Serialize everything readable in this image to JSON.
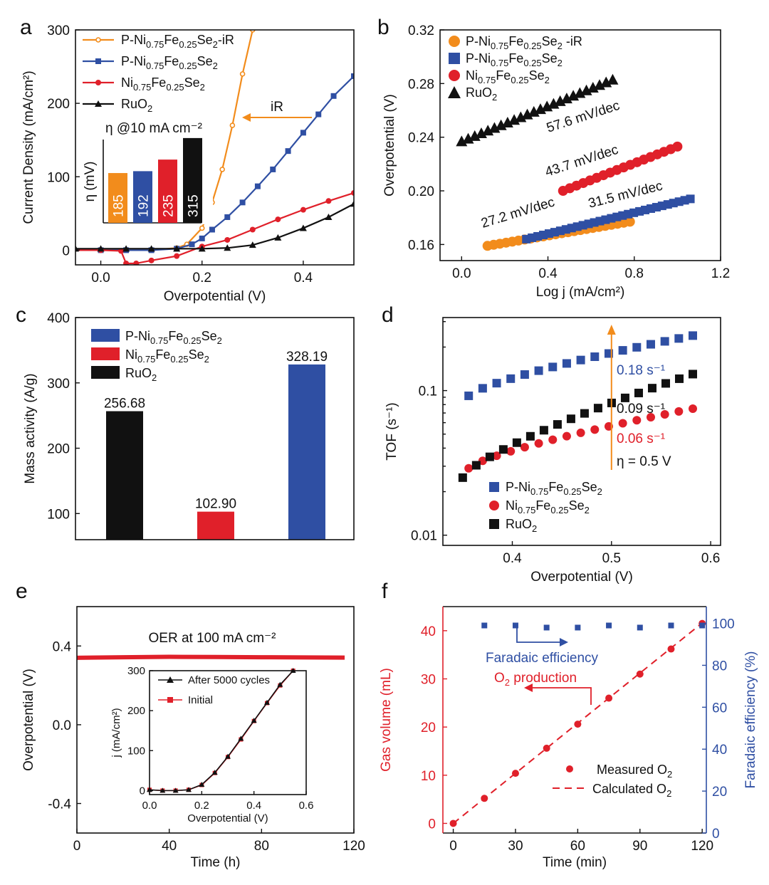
{
  "chart_data": [
    {
      "panel": "a",
      "type": "line",
      "xlabel": "Overpotential (V)",
      "ylabel": "Current Density (mA/cm²)",
      "xlim": [
        -0.05,
        0.5
      ],
      "ylim": [
        -20,
        300
      ],
      "xticks": [
        0.0,
        0.2,
        0.4
      ],
      "yticks": [
        0,
        100,
        200,
        300
      ],
      "annotation": "iR",
      "series": [
        {
          "name": "P-Ni0.75Fe0.25Se2-iR",
          "label_parts": [
            "P-Ni",
            "0.75",
            "Fe",
            "0.25",
            "Se",
            "2",
            "-iR"
          ],
          "color": "#f28c1c",
          "marker": "circle-open",
          "x": [
            -0.05,
            0.0,
            0.05,
            0.1,
            0.15,
            0.17,
            0.2,
            0.22,
            0.24,
            0.26,
            0.28,
            0.3
          ],
          "y": [
            0,
            0,
            0,
            0,
            3,
            8,
            30,
            65,
            110,
            170,
            240,
            300
          ]
        },
        {
          "name": "P-Ni0.75Fe0.25Se2",
          "label_parts": [
            "P-Ni",
            "0.75",
            "Fe",
            "0.25",
            "Se",
            "2",
            ""
          ],
          "color": "#2f4fa3",
          "marker": "square",
          "x": [
            -0.05,
            0.0,
            0.05,
            0.1,
            0.15,
            0.18,
            0.2,
            0.22,
            0.25,
            0.28,
            0.31,
            0.34,
            0.37,
            0.4,
            0.43,
            0.46,
            0.5
          ],
          "y": [
            0,
            0,
            0,
            0,
            2,
            8,
            16,
            28,
            45,
            65,
            87,
            110,
            135,
            160,
            185,
            210,
            237
          ]
        },
        {
          "name": "Ni0.75Fe0.25Se2",
          "label_parts": [
            "Ni",
            "0.75",
            "Fe",
            "0.25",
            "Se",
            "2",
            ""
          ],
          "color": "#e0202a",
          "marker": "circle",
          "x": [
            -0.05,
            0.0,
            0.04,
            0.05,
            0.07,
            0.1,
            0.15,
            0.2,
            0.25,
            0.3,
            0.35,
            0.4,
            0.45,
            0.5
          ],
          "y": [
            0,
            0,
            -1,
            -18,
            -18,
            -14,
            -8,
            5,
            14,
            28,
            42,
            55,
            67,
            78
          ]
        },
        {
          "name": "RuO2",
          "label_parts": [
            "RuO",
            "2",
            "",
            "",
            "",
            "",
            ""
          ],
          "color": "#111111",
          "marker": "triangle",
          "x": [
            -0.05,
            0.0,
            0.05,
            0.1,
            0.15,
            0.2,
            0.25,
            0.3,
            0.35,
            0.4,
            0.45,
            0.5
          ],
          "y": [
            2,
            2,
            2,
            2,
            2,
            2,
            3,
            7,
            17,
            30,
            45,
            63
          ]
        }
      ],
      "inset": {
        "title": "η @10 mA cm⁻²",
        "ylabel": "η (mV)",
        "values": [
          185,
          192,
          235,
          315
        ],
        "labels": [
          "185",
          "192",
          "235",
          "315"
        ],
        "colors": [
          "#f28c1c",
          "#2f4fa3",
          "#e0202a",
          "#111111"
        ]
      }
    },
    {
      "panel": "b",
      "type": "scatter",
      "xlabel": "Log j (mA/cm²)",
      "ylabel": "Overpotential (V)",
      "xlim": [
        -0.1,
        1.2
      ],
      "ylim": [
        0.148,
        0.32
      ],
      "xticks": [
        0.0,
        0.4,
        0.8,
        1.2
      ],
      "yticks": [
        0.16,
        0.2,
        0.24,
        0.28,
        0.32
      ],
      "series": [
        {
          "name": "P-Ni0.75Fe0.25Se2 -iR",
          "label_parts": [
            "P-Ni",
            "0.75",
            "Fe",
            "0.25",
            "Se",
            "2",
            " -iR"
          ],
          "color": "#f28c1c",
          "marker": "circle",
          "x_start": 0.12,
          "x_end": 0.78,
          "y_start": 0.159,
          "y_end": 0.177,
          "n": 24
        },
        {
          "name": "P-Ni0.75Fe0.25Se2",
          "label_parts": [
            "P-Ni",
            "0.75",
            "Fe",
            "0.25",
            "Se",
            "2",
            ""
          ],
          "color": "#2f4fa3",
          "marker": "square",
          "x_start": 0.3,
          "x_end": 1.06,
          "y_start": 0.164,
          "y_end": 0.194,
          "n": 30
        },
        {
          "name": "Ni0.75Fe0.25Se2",
          "label_parts": [
            "Ni",
            "0.75",
            "Fe",
            "0.25",
            "Se",
            "2",
            ""
          ],
          "color": "#e0202a",
          "marker": "circle",
          "x_start": 0.47,
          "x_end": 1.0,
          "y_start": 0.2,
          "y_end": 0.233,
          "n": 18
        },
        {
          "name": "RuO2",
          "label_parts": [
            "RuO",
            "2",
            "",
            "",
            "",
            "",
            ""
          ],
          "color": "#111111",
          "marker": "triangle",
          "x_start": 0.0,
          "x_end": 0.7,
          "y_start": 0.237,
          "y_end": 0.283,
          "n": 24
        }
      ],
      "annotations": [
        "27.2 mV/dec",
        "31.5 mV/dec",
        "43.7 mV/dec",
        "57.6 mV/dec"
      ]
    },
    {
      "panel": "c",
      "type": "bar",
      "ylabel": "Mass activity (A/g)",
      "ylim": [
        60,
        400
      ],
      "yticks": [
        100,
        200,
        300,
        400
      ],
      "categories": [
        "RuO2",
        "Ni0.75Fe0.25Se2",
        "P-Ni0.75Fe0.25Se2"
      ],
      "values": [
        256.68,
        102.9,
        328.19
      ],
      "value_labels": [
        "256.68",
        "102.90",
        "328.19"
      ],
      "colors": [
        "#111111",
        "#e0202a",
        "#2f4fa3"
      ],
      "legend": [
        {
          "label_parts": [
            "P-Ni",
            "0.75",
            "Fe",
            "0.25",
            "Se",
            "2"
          ],
          "color": "#2f4fa3"
        },
        {
          "label_parts": [
            "Ni",
            "0.75",
            "Fe",
            "0.25",
            "Se",
            "2"
          ],
          "color": "#e0202a"
        },
        {
          "label_parts": [
            "RuO",
            "2",
            "",
            "",
            "",
            ""
          ],
          "color": "#111111"
        }
      ]
    },
    {
      "panel": "d",
      "type": "scatter",
      "xlabel": "Overpotential (V)",
      "ylabel": "TOF (s⁻¹)",
      "yscale": "log",
      "xlim": [
        0.33,
        0.61
      ],
      "ylim": [
        0.0085,
        0.32
      ],
      "xticks": [
        0.4,
        0.5,
        0.6
      ],
      "yticks": [
        0.01,
        0.1
      ],
      "series": [
        {
          "name": "P-Ni0.75Fe0.25Se2",
          "label_parts": [
            "P-Ni",
            "0.75",
            "Fe",
            "0.25",
            "Se",
            "2"
          ],
          "color": "#2f4fa3",
          "marker": "square",
          "x_start": 0.356,
          "x_end": 0.582,
          "y_start": 0.092,
          "y_end": 0.24,
          "n": 17
        },
        {
          "name": "Ni0.75Fe0.25Se2",
          "label_parts": [
            "Ni",
            "0.75",
            "Fe",
            "0.25",
            "Se",
            "2"
          ],
          "color": "#e0202a",
          "marker": "circle",
          "x_start": 0.356,
          "x_end": 0.582,
          "y_start": 0.029,
          "y_end": 0.075,
          "n": 17
        },
        {
          "name": "RuO2",
          "label_parts": [
            "RuO",
            "2",
            "",
            "",
            "",
            ""
          ],
          "color": "#111111",
          "marker": "square",
          "x_start": 0.35,
          "x_end": 0.582,
          "y_start": 0.025,
          "y_end": 0.13,
          "n": 18
        }
      ],
      "annotations": [
        "0.18 s⁻¹",
        "0.09 s⁻¹",
        "0.06 s⁻¹",
        "η = 0.5 V"
      ]
    },
    {
      "panel": "e",
      "type": "line",
      "xlabel": "Time (h)",
      "ylabel": "Overpotential (V)",
      "xlim": [
        0,
        120
      ],
      "ylim": [
        -0.55,
        0.6
      ],
      "xticks": [
        0,
        40,
        80,
        120
      ],
      "yticks": [
        -0.4,
        0.0,
        0.4
      ],
      "title": "OER at 100 mA cm⁻²",
      "series": [
        {
          "name": "",
          "color": "#e0202a",
          "x": [
            0,
            20,
            40,
            60,
            80,
            100,
            116
          ],
          "y": [
            0.34,
            0.343,
            0.345,
            0.344,
            0.343,
            0.342,
            0.341
          ]
        }
      ],
      "inset": {
        "xlabel": "Overpotential (V)",
        "ylabel": "j (mA/cm²)",
        "xlim": [
          0,
          0.6
        ],
        "ylim": [
          -10,
          300
        ],
        "xticks": [
          0.0,
          0.2,
          0.4,
          0.6
        ],
        "yticks": [
          0,
          100,
          200,
          300
        ],
        "series": [
          {
            "name": "After 5000 cycles",
            "color": "#111111",
            "marker": "triangle",
            "x": [
              0.0,
              0.05,
              0.1,
              0.15,
              0.2,
              0.25,
              0.3,
              0.35,
              0.4,
              0.45,
              0.5,
              0.55
            ],
            "y": [
              2,
              0,
              0,
              2,
              15,
              45,
              85,
              130,
              175,
              220,
              265,
              300
            ]
          },
          {
            "name": "Initial",
            "color": "#e0202a",
            "marker": "square",
            "x": [
              0.0,
              0.05,
              0.1,
              0.15,
              0.2,
              0.25,
              0.3,
              0.35,
              0.4,
              0.45,
              0.5,
              0.55
            ],
            "y": [
              2,
              0,
              0,
              2,
              14,
              44,
              84,
              128,
              174,
              219,
              263,
              300
            ]
          }
        ]
      }
    },
    {
      "panel": "f",
      "type": "scatter",
      "xlabel": "Time (min)",
      "ylabel": "Gas volume (mL)",
      "y2label": "Faradaic efficiency (%)",
      "xlim": [
        -5,
        122
      ],
      "ylim": [
        -2,
        45
      ],
      "y2lim": [
        0,
        108
      ],
      "xticks": [
        0,
        30,
        60,
        90,
        120
      ],
      "yticks": [
        0,
        10,
        20,
        30,
        40
      ],
      "y2ticks": [
        0,
        20,
        40,
        60,
        80,
        100
      ],
      "series": [
        {
          "name": "Measured O2",
          "label_parts": [
            "Measured O",
            "2"
          ],
          "color": "#e0202a",
          "marker": "circle",
          "x": [
            0,
            15,
            30,
            45,
            60,
            75,
            90,
            105,
            120
          ],
          "y": [
            0,
            5.2,
            10.4,
            15.6,
            20.6,
            26.0,
            31.0,
            36.2,
            41.5
          ]
        },
        {
          "name": "Calculated O2",
          "label_parts": [
            "Calculated O",
            "2"
          ],
          "color": "#e0202a",
          "marker": "dashed-line",
          "x": [
            0,
            120
          ],
          "y": [
            0,
            41.6
          ]
        },
        {
          "name": "Faradaic efficiency",
          "color": "#2f4fa3",
          "marker": "square",
          "axis": "y2",
          "x": [
            15,
            30,
            45,
            60,
            75,
            90,
            105,
            120
          ],
          "y": [
            99,
            99,
            98,
            98,
            99,
            98,
            99,
            99
          ]
        }
      ],
      "annotations": [
        "Faradaic efficiency",
        "O2 production"
      ]
    }
  ],
  "panels": {
    "a": "a",
    "b": "b",
    "c": "c",
    "d": "d",
    "e": "e",
    "f": "f"
  }
}
